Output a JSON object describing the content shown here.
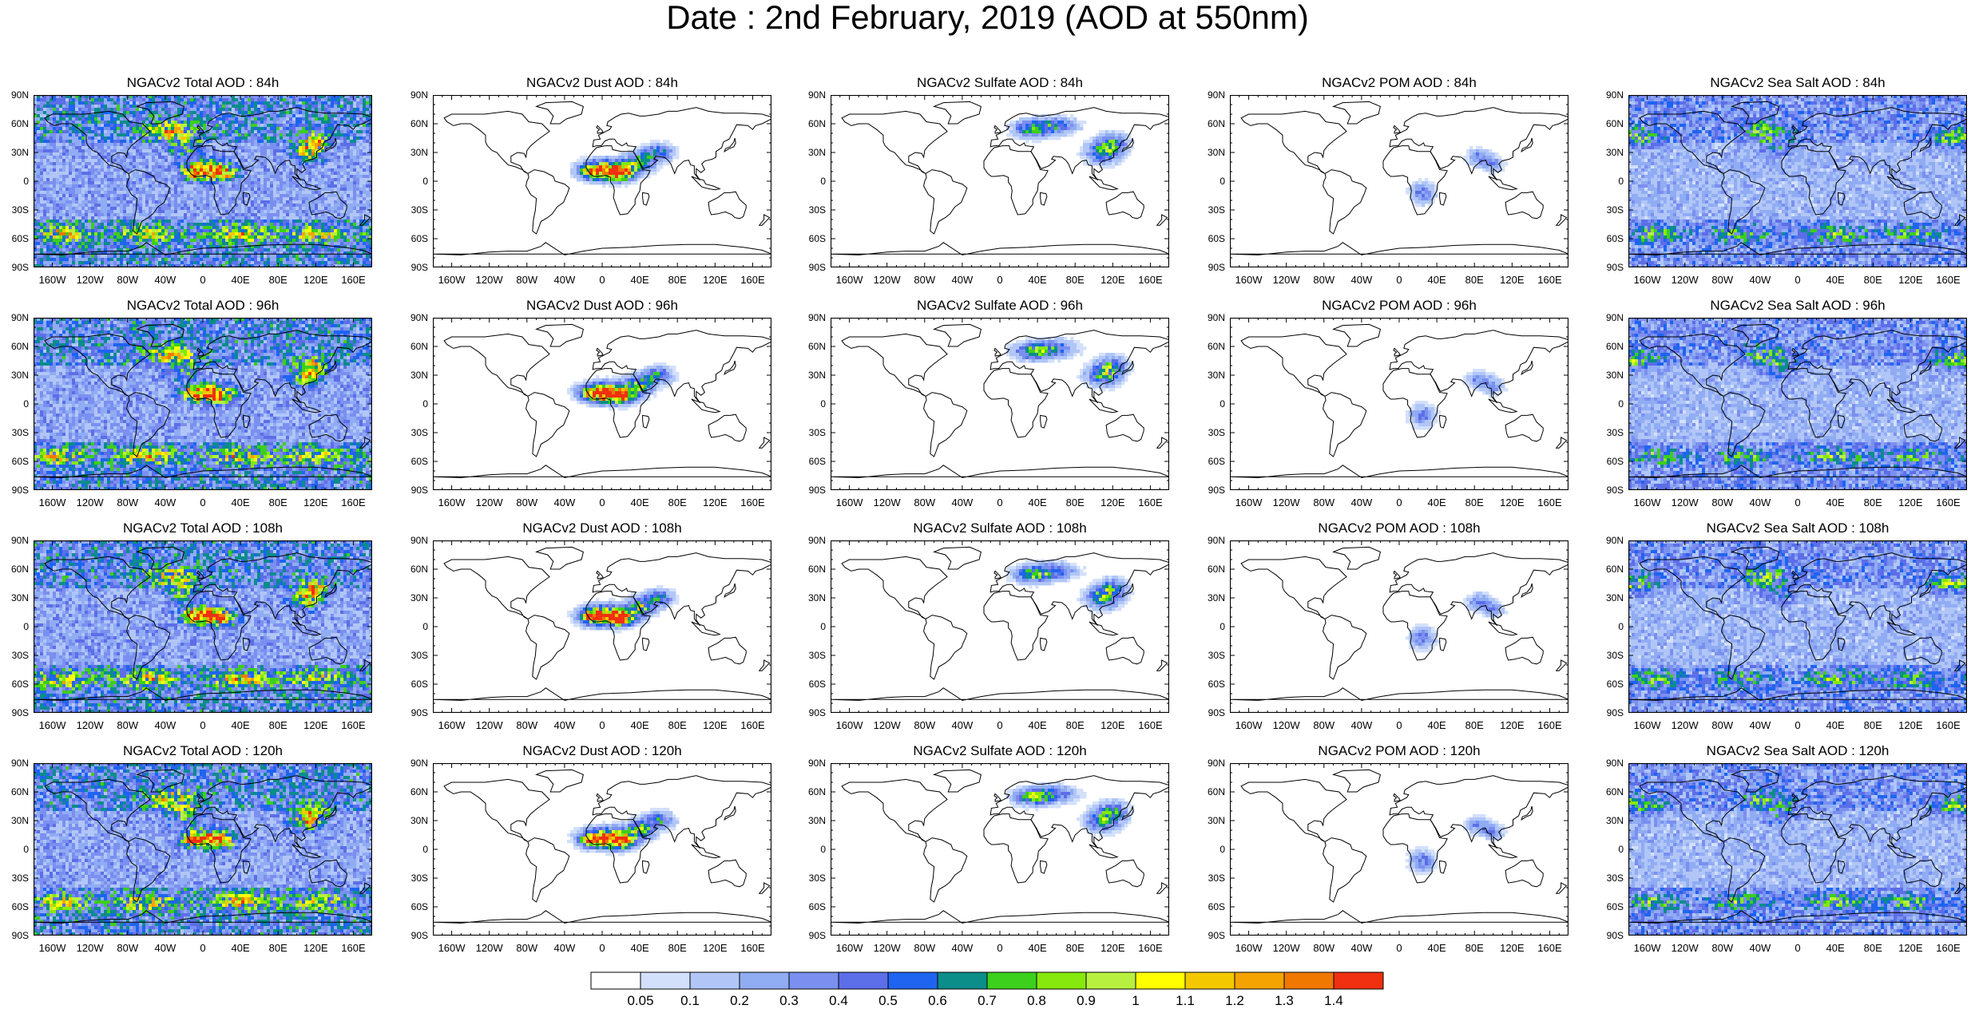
{
  "title": "Date : 2nd February, 2019 (AOD at 550nm)",
  "lat_labels": [
    "90N",
    "60N",
    "30N",
    "0",
    "30S",
    "60S",
    "90S"
  ],
  "lon_labels": [
    "160W",
    "120W",
    "80W",
    "40W",
    "0",
    "40E",
    "80E",
    "120E",
    "160E"
  ],
  "species": [
    {
      "key": "total",
      "emphasis": "high",
      "region_centers": [
        "central-africa",
        "east-asia",
        "southern-ocean",
        "north-atlantic"
      ]
    },
    {
      "key": "dust",
      "emphasis": "dust",
      "region_centers": [
        "central-africa",
        "arabia"
      ]
    },
    {
      "key": "sulfate",
      "emphasis": "sulfate",
      "region_centers": [
        "eastern-europe",
        "east-asia"
      ]
    },
    {
      "key": "pom",
      "emphasis": "pom",
      "region_centers": [
        "southern-africa",
        "south-asia"
      ]
    },
    {
      "key": "seasalt",
      "emphasis": "seasalt",
      "region_centers": [
        "southern-ocean",
        "north-atlantic",
        "north-pacific"
      ]
    }
  ],
  "panels": [
    [
      "NGACv2 Total AOD : 84h",
      "NGACv2 Dust AOD : 84h",
      "NGACv2 Sulfate AOD : 84h",
      "NGACv2 POM AOD : 84h",
      "NGACv2 Sea Salt AOD : 84h"
    ],
    [
      "NGACv2 Total AOD : 96h",
      "NGACv2 Dust AOD : 96h",
      "NGACv2 Sulfate AOD : 96h",
      "NGACv2 POM AOD : 96h",
      "NGACv2 Sea Salt AOD : 96h"
    ],
    [
      "NGACv2 Total AOD : 108h",
      "NGACv2 Dust AOD : 108h",
      "NGACv2 Sulfate AOD : 108h",
      "NGACv2 POM AOD : 108h",
      "NGACv2 Sea Salt AOD : 108h"
    ],
    [
      "NGACv2 Total AOD : 120h",
      "NGACv2 Dust AOD : 120h",
      "NGACv2 Sulfate AOD : 120h",
      "NGACv2 POM AOD : 120h",
      "NGACv2 Sea Salt  AOD : 120h"
    ]
  ],
  "colorbar": {
    "labels": [
      "0.05",
      "0.1",
      "0.2",
      "0.3",
      "0.4",
      "0.5",
      "0.6",
      "0.7",
      "0.8",
      "0.9",
      "1",
      "1.1",
      "1.2",
      "1.3",
      "1.4"
    ],
    "colors": [
      "#ffffff",
      "#d3e0fb",
      "#b1c6f7",
      "#90acf3",
      "#7b8ff0",
      "#5c6ee8",
      "#1e64f0",
      "#0b8d8a",
      "#3ccf1c",
      "#86e80c",
      "#b8f040",
      "#ffff00",
      "#f4c800",
      "#f5a300",
      "#f07800",
      "#f03010"
    ]
  }
}
